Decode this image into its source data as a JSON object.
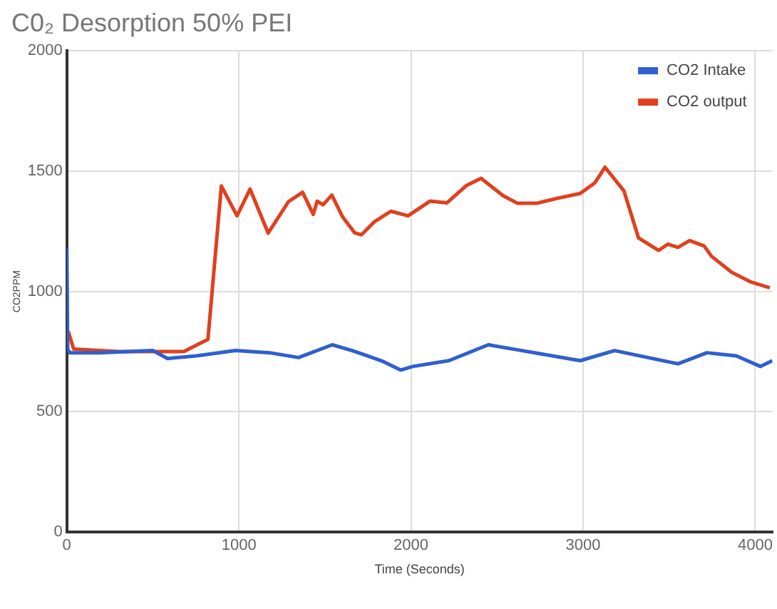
{
  "chart_data": {
    "type": "line",
    "title": "C0₂ Desorption 50% PEI",
    "xlabel": "Time (Seconds)",
    "ylabel": "CO2PPM",
    "xlim": [
      0,
      4100
    ],
    "xticks": [
      0,
      1000,
      2000,
      3000,
      4000
    ],
    "ylim": [
      0,
      2000
    ],
    "yticks": [
      0,
      500,
      1000,
      1500,
      2000
    ],
    "grid": true,
    "legend": "top right",
    "marker": "none",
    "line_style": "solid",
    "series": [
      {
        "name": "CO2 Intake",
        "color": "#2f5fcf",
        "x": [
          0,
          5,
          17,
          186,
          500,
          585,
          754,
          980,
          1178,
          1347,
          1542,
          1658,
          1827,
          1941,
          2010,
          2220,
          2449,
          2644,
          2983,
          3183,
          3551,
          3720,
          3890,
          4031,
          4100
        ],
        "values": [
          1180,
          760,
          745,
          745,
          754,
          721,
          732,
          754,
          745,
          725,
          778,
          754,
          712,
          673,
          688,
          712,
          778,
          754,
          712,
          754,
          699,
          745,
          732,
          688,
          712
        ]
      },
      {
        "name": "CO2 output",
        "color": "#e0401e",
        "x": [
          0,
          10,
          40,
          300,
          680,
          790,
          820,
          898,
          989,
          1065,
          1170,
          1288,
          1370,
          1432,
          1455,
          1489,
          1540,
          1602,
          1672,
          1712,
          1785,
          1883,
          1983,
          2110,
          2209,
          2322,
          2407,
          2534,
          2619,
          2729,
          2845,
          2983,
          3068,
          3127,
          3237,
          3322,
          3438,
          3492,
          3551,
          3619,
          3703,
          3746,
          3862,
          3975,
          4085
        ],
        "values": [
          800,
          830,
          760,
          750,
          750,
          790,
          800,
          1438,
          1314,
          1425,
          1242,
          1373,
          1412,
          1320,
          1375,
          1360,
          1400,
          1310,
          1244,
          1235,
          1288,
          1333,
          1314,
          1375,
          1368,
          1440,
          1470,
          1398,
          1366,
          1366,
          1386,
          1407,
          1451,
          1516,
          1418,
          1222,
          1170,
          1196,
          1183,
          1211,
          1189,
          1146,
          1080,
          1039,
          1015
        ]
      }
    ]
  }
}
